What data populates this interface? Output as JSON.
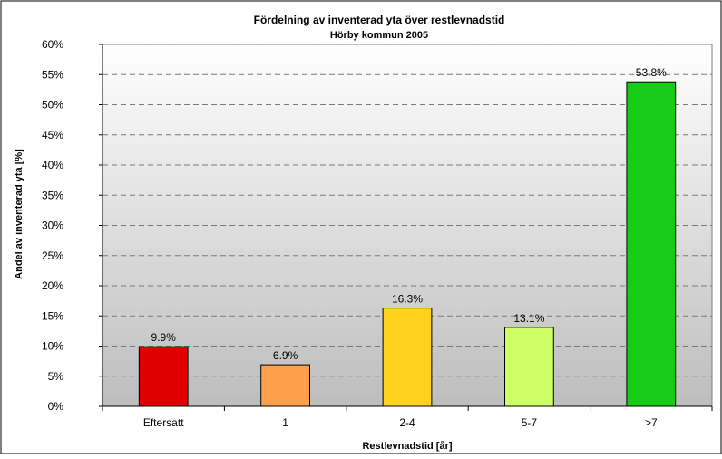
{
  "chart_data": {
    "type": "bar",
    "title": "Fördelning av inventerad yta över restlevnadstid",
    "subtitle": "Hörby kommun 2005",
    "xlabel": "Restlevnadstid [år]",
    "ylabel": "Andel av inventerad yta [%]",
    "categories": [
      "Eftersatt",
      "1",
      "2-4",
      "5-7",
      ">7"
    ],
    "values": [
      9.9,
      6.9,
      16.3,
      13.1,
      53.8
    ],
    "data_labels": [
      "9.9%",
      "6.9%",
      "16.3%",
      "13.1%",
      "53.8%"
    ],
    "bar_colors": [
      "#e00000",
      "#ffa04c",
      "#ffd21e",
      "#ccff66",
      "#16cc16"
    ],
    "ylim": [
      0,
      60
    ],
    "yticks": [
      0,
      5,
      10,
      15,
      20,
      25,
      30,
      35,
      40,
      45,
      50,
      55,
      60
    ],
    "ytick_labels": [
      "0%",
      "5%",
      "10%",
      "15%",
      "20%",
      "25%",
      "30%",
      "35%",
      "40%",
      "45%",
      "50%",
      "55%",
      "60%"
    ],
    "grid": true,
    "legend": "none",
    "plot_background": "gradient white-to-gray"
  }
}
